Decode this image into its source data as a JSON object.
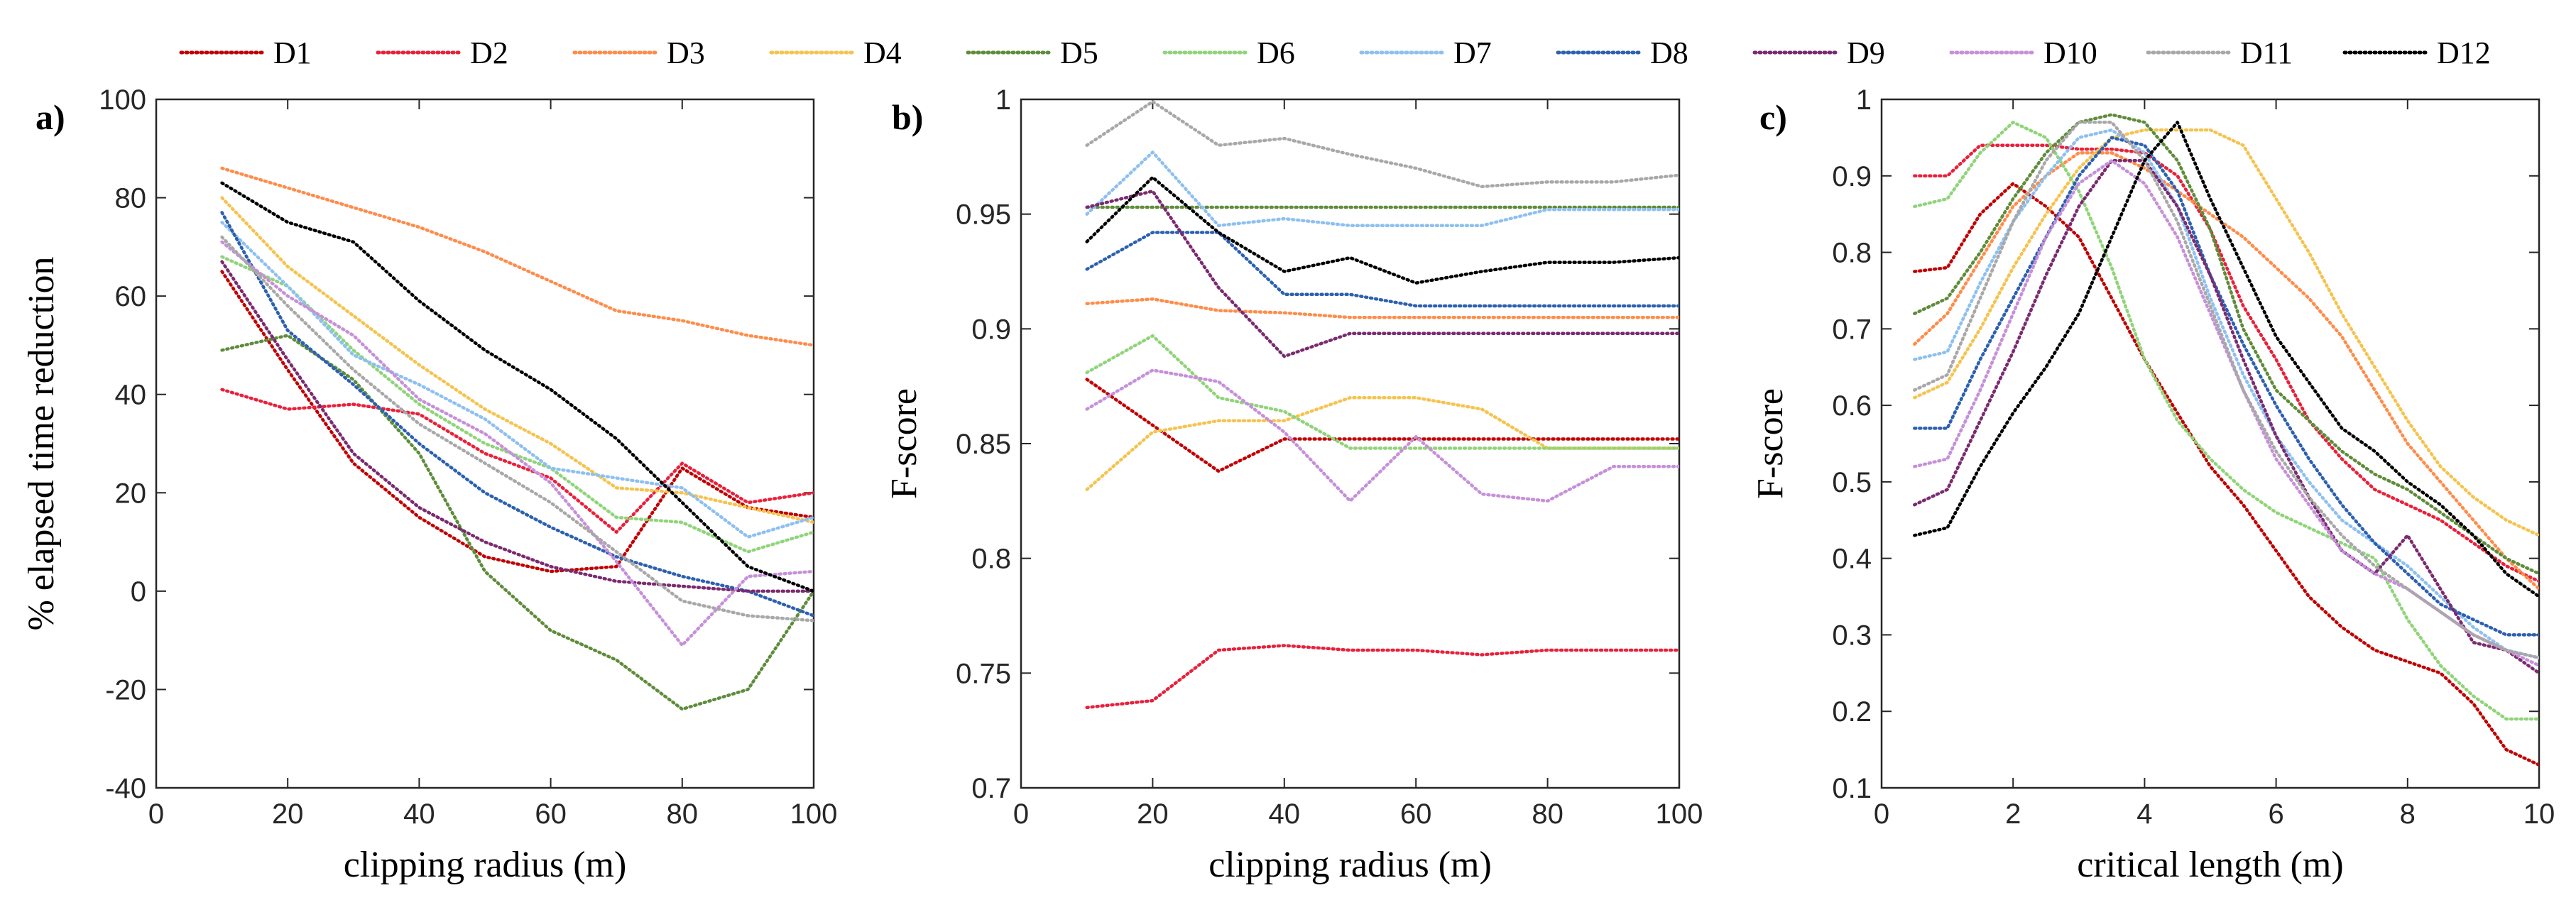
{
  "legend": [
    {
      "label": "D1",
      "color": "#c00000"
    },
    {
      "label": "D2",
      "color": "#e8203a"
    },
    {
      "label": "D3",
      "color": "#ff8c4a"
    },
    {
      "label": "D4",
      "color": "#f5c34f"
    },
    {
      "label": "D5",
      "color": "#5e8c3a"
    },
    {
      "label": "D6",
      "color": "#90d47a"
    },
    {
      "label": "D7",
      "color": "#8ec0f0"
    },
    {
      "label": "D8",
      "color": "#2c60b0"
    },
    {
      "label": "D9",
      "color": "#7a2a70"
    },
    {
      "label": "D10",
      "color": "#c690d8"
    },
    {
      "label": "D11",
      "color": "#a8a8a8"
    },
    {
      "label": "D12",
      "color": "#000000"
    }
  ],
  "chart_data": [
    {
      "type": "line",
      "panel": "a)",
      "xlabel": "clipping radius (m)",
      "ylabel": "% elapsed time reduction",
      "xlim": [
        0,
        100
      ],
      "ylim": [
        -40,
        100
      ],
      "xticks": [
        0,
        20,
        40,
        60,
        80,
        100
      ],
      "yticks": [
        -40,
        -20,
        0,
        20,
        40,
        60,
        80,
        100
      ],
      "x": [
        10,
        20,
        30,
        40,
        50,
        60,
        70,
        80,
        90,
        100
      ],
      "series": [
        {
          "name": "D1",
          "values": [
            65,
            45,
            26,
            15,
            7,
            4,
            5,
            25,
            17,
            15
          ]
        },
        {
          "name": "D2",
          "values": [
            41,
            37,
            38,
            36,
            28,
            23,
            12,
            26,
            18,
            20
          ]
        },
        {
          "name": "D3",
          "values": [
            86,
            82,
            78,
            74,
            69,
            63,
            57,
            55,
            52,
            50
          ]
        },
        {
          "name": "D4",
          "values": [
            80,
            66,
            56,
            46,
            37,
            30,
            21,
            20,
            17,
            14
          ]
        },
        {
          "name": "D5",
          "values": [
            49,
            52,
            43,
            28,
            4,
            -8,
            -14,
            -24,
            -20,
            0
          ]
        },
        {
          "name": "D6",
          "values": [
            68,
            62,
            49,
            38,
            30,
            25,
            15,
            14,
            8,
            12
          ]
        },
        {
          "name": "D7",
          "values": [
            75,
            62,
            48,
            42,
            35,
            25,
            23,
            21,
            11,
            15
          ]
        },
        {
          "name": "D8",
          "values": [
            77,
            53,
            42,
            30,
            20,
            13,
            7,
            3,
            0,
            -5
          ]
        },
        {
          "name": "D9",
          "values": [
            67,
            47,
            28,
            17,
            10,
            5,
            2,
            1,
            0,
            0
          ]
        },
        {
          "name": "D10",
          "values": [
            71,
            60,
            52,
            39,
            32,
            22,
            6,
            -11,
            3,
            4
          ]
        },
        {
          "name": "D11",
          "values": [
            72,
            58,
            45,
            34,
            26,
            18,
            8,
            -2,
            -5,
            -6
          ]
        },
        {
          "name": "D12",
          "values": [
            83,
            75,
            71,
            59,
            49,
            41,
            31,
            18,
            5,
            0
          ]
        }
      ]
    },
    {
      "type": "line",
      "panel": "b)",
      "xlabel": "clipping radius (m)",
      "ylabel": "F-score",
      "xlim": [
        0,
        100
      ],
      "ylim": [
        0.7,
        1
      ],
      "xticks": [
        0,
        20,
        40,
        60,
        80,
        100
      ],
      "yticks": [
        0.7,
        0.75,
        0.8,
        0.85,
        0.9,
        0.95,
        1
      ],
      "x": [
        10,
        20,
        30,
        40,
        50,
        60,
        70,
        80,
        90,
        100
      ],
      "series": [
        {
          "name": "D1",
          "values": [
            0.878,
            0.858,
            0.838,
            0.852,
            0.852,
            0.852,
            0.852,
            0.852,
            0.852,
            0.852
          ]
        },
        {
          "name": "D2",
          "values": [
            0.735,
            0.738,
            0.76,
            0.762,
            0.76,
            0.76,
            0.758,
            0.76,
            0.76,
            0.76
          ]
        },
        {
          "name": "D3",
          "values": [
            0.911,
            0.913,
            0.908,
            0.907,
            0.905,
            0.905,
            0.905,
            0.905,
            0.905,
            0.905
          ]
        },
        {
          "name": "D4",
          "values": [
            0.83,
            0.855,
            0.86,
            0.86,
            0.87,
            0.87,
            0.865,
            0.848,
            0.848,
            0.848
          ]
        },
        {
          "name": "D5",
          "values": [
            0.953,
            0.953,
            0.953,
            0.953,
            0.953,
            0.953,
            0.953,
            0.953,
            0.953,
            0.953
          ]
        },
        {
          "name": "D6",
          "values": [
            0.881,
            0.897,
            0.87,
            0.864,
            0.848,
            0.848,
            0.848,
            0.848,
            0.848,
            0.848
          ]
        },
        {
          "name": "D7",
          "values": [
            0.95,
            0.977,
            0.945,
            0.948,
            0.945,
            0.945,
            0.945,
            0.952,
            0.952,
            0.952
          ]
        },
        {
          "name": "D8",
          "values": [
            0.926,
            0.942,
            0.942,
            0.915,
            0.915,
            0.91,
            0.91,
            0.91,
            0.91,
            0.91
          ]
        },
        {
          "name": "D9",
          "values": [
            0.953,
            0.96,
            0.918,
            0.888,
            0.898,
            0.898,
            0.898,
            0.898,
            0.898,
            0.898
          ]
        },
        {
          "name": "D10",
          "values": [
            0.865,
            0.882,
            0.877,
            0.855,
            0.825,
            0.853,
            0.828,
            0.825,
            0.84,
            0.84
          ]
        },
        {
          "name": "D11",
          "values": [
            0.98,
            0.999,
            0.98,
            0.983,
            0.976,
            0.97,
            0.962,
            0.964,
            0.964,
            0.967
          ]
        },
        {
          "name": "D12",
          "values": [
            0.938,
            0.966,
            0.942,
            0.925,
            0.931,
            0.92,
            0.925,
            0.929,
            0.929,
            0.931
          ]
        }
      ]
    },
    {
      "type": "line",
      "panel": "c)",
      "xlabel": "critical length (m)",
      "ylabel": "F-score",
      "xlim": [
        0,
        10
      ],
      "ylim": [
        0.1,
        1
      ],
      "xticks": [
        0,
        2,
        4,
        6,
        8,
        10
      ],
      "yticks": [
        0.1,
        0.2,
        0.3,
        0.4,
        0.5,
        0.6,
        0.7,
        0.8,
        0.9,
        1
      ],
      "x": [
        0.5,
        1,
        1.5,
        2,
        2.5,
        3,
        3.5,
        4,
        4.5,
        5,
        5.5,
        6,
        6.5,
        7,
        7.5,
        8,
        8.5,
        9,
        9.5,
        10
      ],
      "series": [
        {
          "name": "D1",
          "values": [
            0.775,
            0.78,
            0.85,
            0.89,
            0.86,
            0.82,
            0.74,
            0.66,
            0.59,
            0.52,
            0.47,
            0.41,
            0.35,
            0.31,
            0.28,
            0.265,
            0.25,
            0.21,
            0.15,
            0.13
          ]
        },
        {
          "name": "D2",
          "values": [
            0.9,
            0.9,
            0.94,
            0.94,
            0.94,
            0.935,
            0.935,
            0.93,
            0.9,
            0.83,
            0.73,
            0.66,
            0.58,
            0.53,
            0.49,
            0.47,
            0.45,
            0.42,
            0.39,
            0.37
          ]
        },
        {
          "name": "D3",
          "values": [
            0.68,
            0.72,
            0.79,
            0.86,
            0.9,
            0.93,
            0.93,
            0.91,
            0.88,
            0.85,
            0.82,
            0.78,
            0.74,
            0.69,
            0.62,
            0.55,
            0.5,
            0.45,
            0.4,
            0.36
          ]
        },
        {
          "name": "D4",
          "values": [
            0.61,
            0.63,
            0.7,
            0.78,
            0.85,
            0.91,
            0.95,
            0.96,
            0.96,
            0.96,
            0.94,
            0.87,
            0.8,
            0.72,
            0.65,
            0.58,
            0.52,
            0.48,
            0.45,
            0.43
          ]
        },
        {
          "name": "D5",
          "values": [
            0.72,
            0.74,
            0.8,
            0.87,
            0.93,
            0.97,
            0.98,
            0.97,
            0.92,
            0.83,
            0.7,
            0.62,
            0.58,
            0.54,
            0.51,
            0.49,
            0.46,
            0.43,
            0.4,
            0.38
          ]
        },
        {
          "name": "D6",
          "values": [
            0.86,
            0.87,
            0.93,
            0.97,
            0.95,
            0.88,
            0.78,
            0.66,
            0.58,
            0.53,
            0.49,
            0.46,
            0.44,
            0.42,
            0.4,
            0.32,
            0.26,
            0.22,
            0.19,
            0.19
          ]
        },
        {
          "name": "D7",
          "values": [
            0.66,
            0.67,
            0.76,
            0.84,
            0.9,
            0.95,
            0.96,
            0.93,
            0.86,
            0.74,
            0.64,
            0.56,
            0.5,
            0.45,
            0.42,
            0.39,
            0.35,
            0.31,
            0.28,
            0.27
          ]
        },
        {
          "name": "D8",
          "values": [
            0.57,
            0.57,
            0.66,
            0.74,
            0.82,
            0.9,
            0.95,
            0.94,
            0.88,
            0.77,
            0.68,
            0.6,
            0.53,
            0.47,
            0.42,
            0.38,
            0.34,
            0.32,
            0.3,
            0.3
          ]
        },
        {
          "name": "D9",
          "values": [
            0.47,
            0.49,
            0.58,
            0.67,
            0.77,
            0.86,
            0.92,
            0.92,
            0.86,
            0.77,
            0.66,
            0.56,
            0.48,
            0.41,
            0.38,
            0.43,
            0.36,
            0.29,
            0.28,
            0.25
          ]
        },
        {
          "name": "D10",
          "values": [
            0.52,
            0.53,
            0.62,
            0.72,
            0.82,
            0.89,
            0.92,
            0.89,
            0.82,
            0.72,
            0.62,
            0.53,
            0.47,
            0.41,
            0.38,
            0.36,
            0.33,
            0.3,
            0.28,
            0.26
          ]
        },
        {
          "name": "D11",
          "values": [
            0.62,
            0.64,
            0.74,
            0.84,
            0.92,
            0.97,
            0.97,
            0.92,
            0.84,
            0.73,
            0.62,
            0.54,
            0.48,
            0.43,
            0.39,
            0.36,
            0.33,
            0.3,
            0.28,
            0.27
          ]
        },
        {
          "name": "D12",
          "values": [
            0.43,
            0.44,
            0.52,
            0.59,
            0.65,
            0.72,
            0.82,
            0.92,
            0.97,
            0.87,
            0.78,
            0.69,
            0.63,
            0.57,
            0.54,
            0.5,
            0.47,
            0.43,
            0.38,
            0.35
          ]
        }
      ]
    }
  ]
}
